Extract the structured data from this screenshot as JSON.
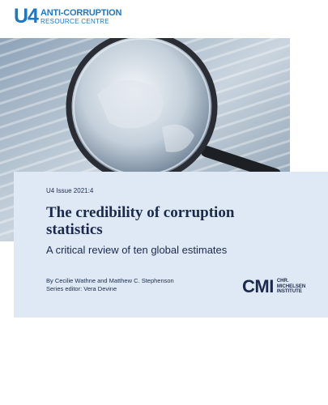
{
  "logo": {
    "mark": "U4",
    "line1": "ANTI-CORRUPTION",
    "line2": "RESOURCE CENTRE"
  },
  "issue": "U4 Issue 2021:4",
  "title": "The credibility of corruption statistics",
  "subtitle": "A critical review of ten global estimates",
  "authors": "By Cecilie Wathne and Matthew C. Stephenson",
  "series_editor": "Series editor: Vera Devine",
  "cmi": {
    "mark": "CMI",
    "lines": [
      "CHR.",
      "MICHELSEN",
      "INSTITUTE"
    ]
  }
}
